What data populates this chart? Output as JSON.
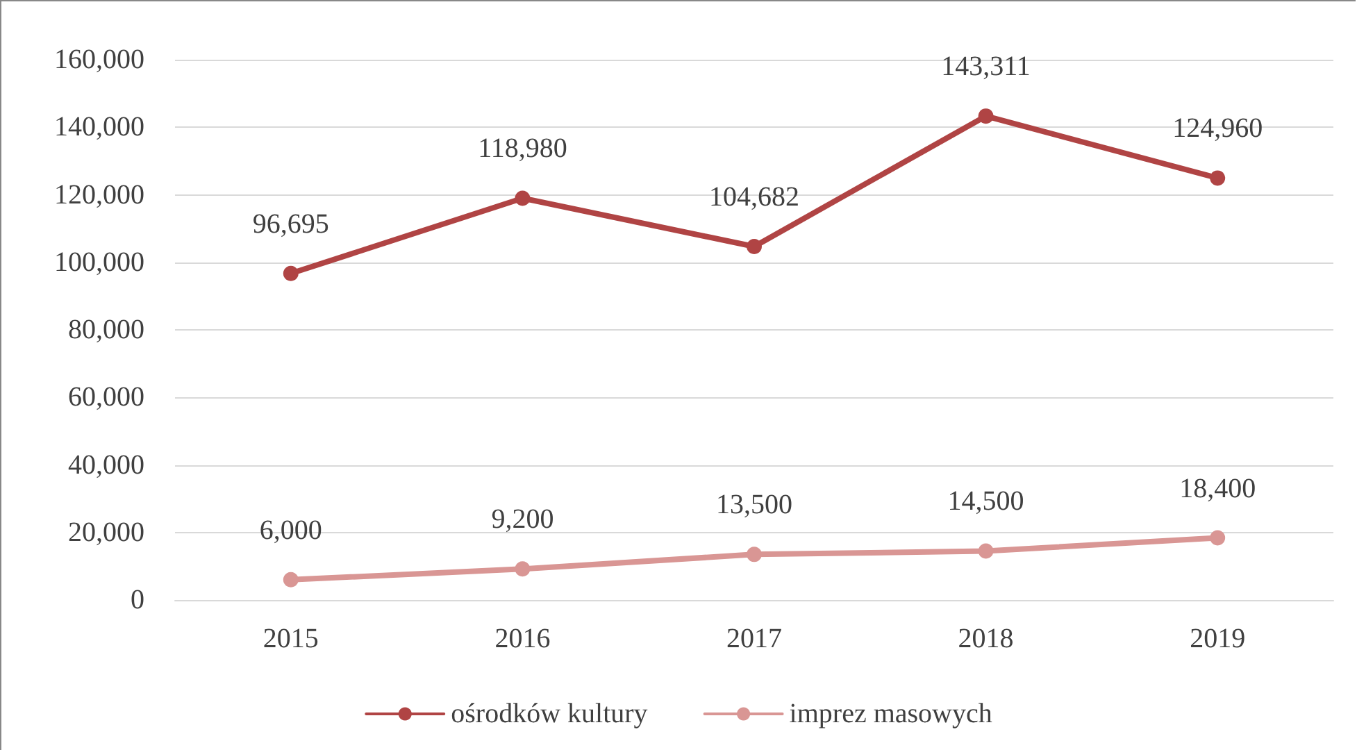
{
  "chart_data": {
    "type": "line",
    "categories": [
      "2015",
      "2016",
      "2017",
      "2018",
      "2019"
    ],
    "series": [
      {
        "name": "ośrodków kultury",
        "color": "#b04444",
        "values": [
          96695,
          118980,
          104682,
          143311,
          124960
        ],
        "value_labels": [
          "96,695",
          "118,980",
          "104,682",
          "143,311",
          "124,960"
        ]
      },
      {
        "name": "imprez masowych",
        "color": "#d99694",
        "values": [
          6000,
          9200,
          13500,
          14500,
          18400
        ],
        "value_labels": [
          "6,000",
          "9,200",
          "13,500",
          "14,500",
          "18,400"
        ]
      }
    ],
    "ylim": [
      0,
      160000
    ],
    "yticks": [
      0,
      {
        "value": 20000,
        "label": "20,000"
      },
      {
        "value": 40000,
        "label": "40,000"
      },
      {
        "value": 60000,
        "label": "60,000"
      },
      {
        "value": 80000,
        "label": "80,000"
      },
      {
        "value": 100000,
        "label": "100,000"
      },
      {
        "value": 120000,
        "label": "120,000"
      },
      {
        "value": 140000,
        "label": "140,000"
      },
      {
        "value": 160000,
        "label": "160,000"
      }
    ],
    "grid": "y",
    "legend": "bottom",
    "marker": "circle",
    "line_style": "solid"
  }
}
